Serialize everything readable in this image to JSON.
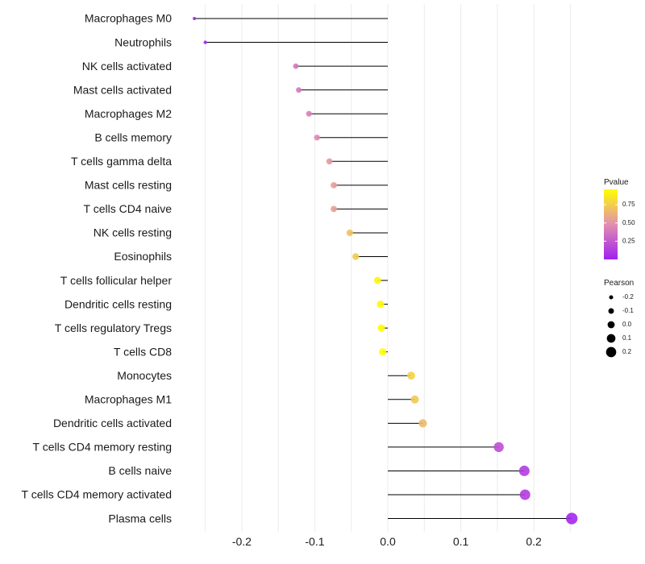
{
  "chart_data": {
    "type": "lollipop",
    "title": "",
    "xlabel": "",
    "ylabel": "",
    "xlim": [
      -0.265,
      0.255
    ],
    "x_ticks": [
      -0.2,
      -0.1,
      0.0,
      0.1,
      0.2
    ],
    "x_tick_labels": [
      "-0.2",
      "-0.1",
      "0.0",
      "0.1",
      "0.2"
    ],
    "grid": true,
    "categories": [
      "Macrophages M0",
      "Neutrophils",
      "NK cells activated",
      "Mast cells activated",
      "Macrophages M2",
      "B cells memory",
      "T cells gamma delta",
      "Mast cells resting",
      "T cells CD4 naive",
      "NK cells resting",
      "Eosinophils",
      "T cells follicular helper",
      "Dendritic cells resting",
      "T cells regulatory  Tregs ",
      "T cells CD8",
      "Monocytes",
      "Macrophages M1",
      "Dendritic cells activated",
      "T cells CD4 memory resting",
      "B cells naive",
      "T cells CD4 memory activated",
      "Plasma cells"
    ],
    "pearson": [
      -0.265,
      -0.25,
      -0.126,
      -0.122,
      -0.108,
      -0.097,
      -0.08,
      -0.074,
      -0.074,
      -0.052,
      -0.044,
      -0.014,
      -0.01,
      -0.009,
      -0.007,
      0.032,
      0.037,
      0.048,
      0.152,
      0.187,
      0.188,
      0.252
    ],
    "pvalue": [
      0.01,
      0.02,
      0.38,
      0.39,
      0.42,
      0.45,
      0.52,
      0.55,
      0.55,
      0.7,
      0.74,
      0.92,
      0.94,
      0.95,
      0.96,
      0.77,
      0.73,
      0.66,
      0.2,
      0.12,
      0.12,
      0.03
    ],
    "color_legend": {
      "title": "Pvalue",
      "ticks": [
        0.25,
        0.5,
        0.75
      ],
      "tick_labels": [
        "0.25",
        "0.50",
        "0.75"
      ],
      "range": [
        0.0,
        0.96
      ],
      "low_color": "#a020f0",
      "mid_color": "#e28fb0",
      "high_color": "#ffff00"
    },
    "size_legend": {
      "title": "Pearson",
      "values": [
        -0.2,
        -0.1,
        0.0,
        0.1,
        0.2
      ],
      "labels": [
        "-0.2",
        "-0.1",
        "0.0",
        "0.1",
        "0.2"
      ],
      "color": "#000000"
    },
    "legend_position": "right",
    "segment_color": "#000000"
  }
}
